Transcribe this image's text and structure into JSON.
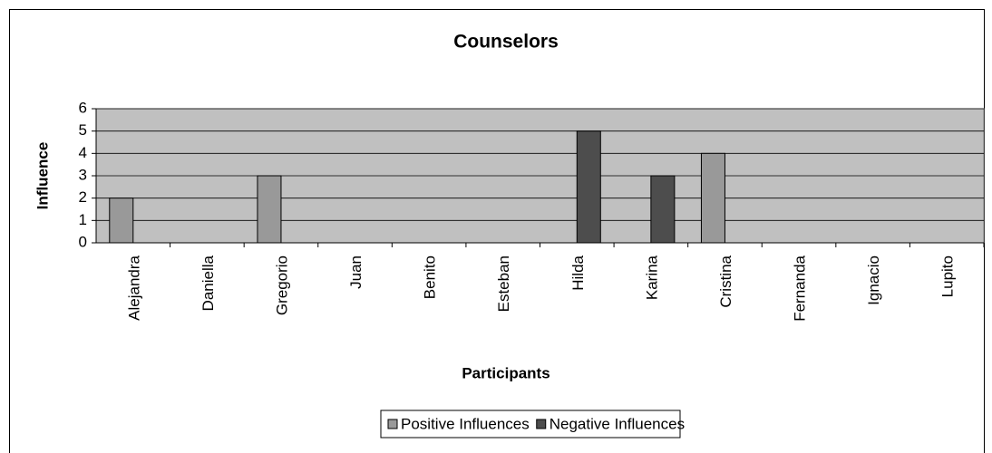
{
  "chart_data": {
    "type": "bar",
    "title": "Counselors",
    "x_label": "Participants",
    "y_label": "Influence",
    "categories": [
      "Alejandra",
      "Daniella",
      "Gregorio",
      "Juan",
      "Benito",
      "Esteban",
      "Hilda",
      "Karina",
      "Cristina",
      "Fernanda",
      "Ignacio",
      "Lupito"
    ],
    "series": [
      {
        "name": "Positive Influences",
        "color": "#999999",
        "values": [
          2,
          0,
          3,
          0,
          0,
          0,
          0,
          0,
          4,
          0,
          0,
          0
        ]
      },
      {
        "name": "Negative Influences",
        "color": "#4d4d4d",
        "values": [
          0,
          0,
          0,
          0,
          0,
          0,
          5,
          3,
          0,
          0,
          0,
          0
        ]
      }
    ],
    "ylim": [
      0,
      6
    ],
    "yticks": [
      0,
      1,
      2,
      3,
      4,
      5,
      6
    ],
    "grid": true,
    "legend": "bottom"
  }
}
